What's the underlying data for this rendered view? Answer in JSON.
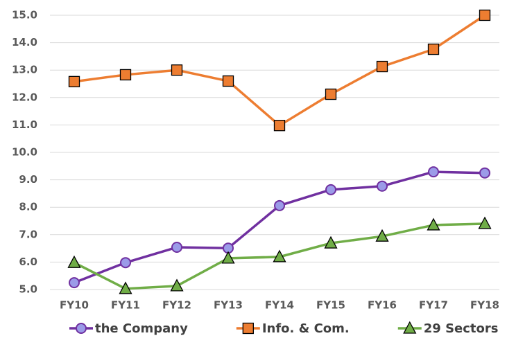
{
  "chart_data": {
    "type": "line",
    "categories": [
      "FY10",
      "FY11",
      "FY12",
      "FY13",
      "FY14",
      "FY15",
      "FY16",
      "FY17",
      "FY18"
    ],
    "series": [
      {
        "name": "the Company",
        "color": "#7030a0",
        "marker": "circle",
        "marker_color": "#9b9be8",
        "values": [
          5.25,
          5.98,
          6.54,
          6.51,
          8.06,
          8.64,
          8.77,
          9.29,
          9.25
        ]
      },
      {
        "name": "Info. & Com.",
        "color": "#ed7d31",
        "marker": "square",
        "marker_color": "#ed7d31",
        "values": [
          12.58,
          12.83,
          13.0,
          12.6,
          10.98,
          12.12,
          13.13,
          13.76,
          15.0
        ]
      },
      {
        "name": "29 Sectors",
        "color": "#70ad47",
        "marker": "triangle",
        "marker_color": "#70ad47",
        "values": [
          5.98,
          5.03,
          5.13,
          6.14,
          6.19,
          6.69,
          6.94,
          7.35,
          7.4
        ]
      }
    ],
    "ylim": [
      5,
      15
    ],
    "yticks": [
      {
        "value": 5,
        "label": "5.0"
      },
      {
        "value": 6,
        "label": "6.0"
      },
      {
        "value": 7,
        "label": "7.0"
      },
      {
        "value": 8,
        "label": "8.0"
      },
      {
        "value": 9,
        "label": "9.0"
      },
      {
        "value": 10,
        "label": "10.0"
      },
      {
        "value": 11,
        "label": "11.0"
      },
      {
        "value": 12,
        "label": "12.0"
      },
      {
        "value": 13,
        "label": "13.0"
      },
      {
        "value": 14,
        "label": "14.0"
      },
      {
        "value": 15,
        "label": "15.0"
      }
    ],
    "grid": true,
    "legend": "bottom"
  }
}
